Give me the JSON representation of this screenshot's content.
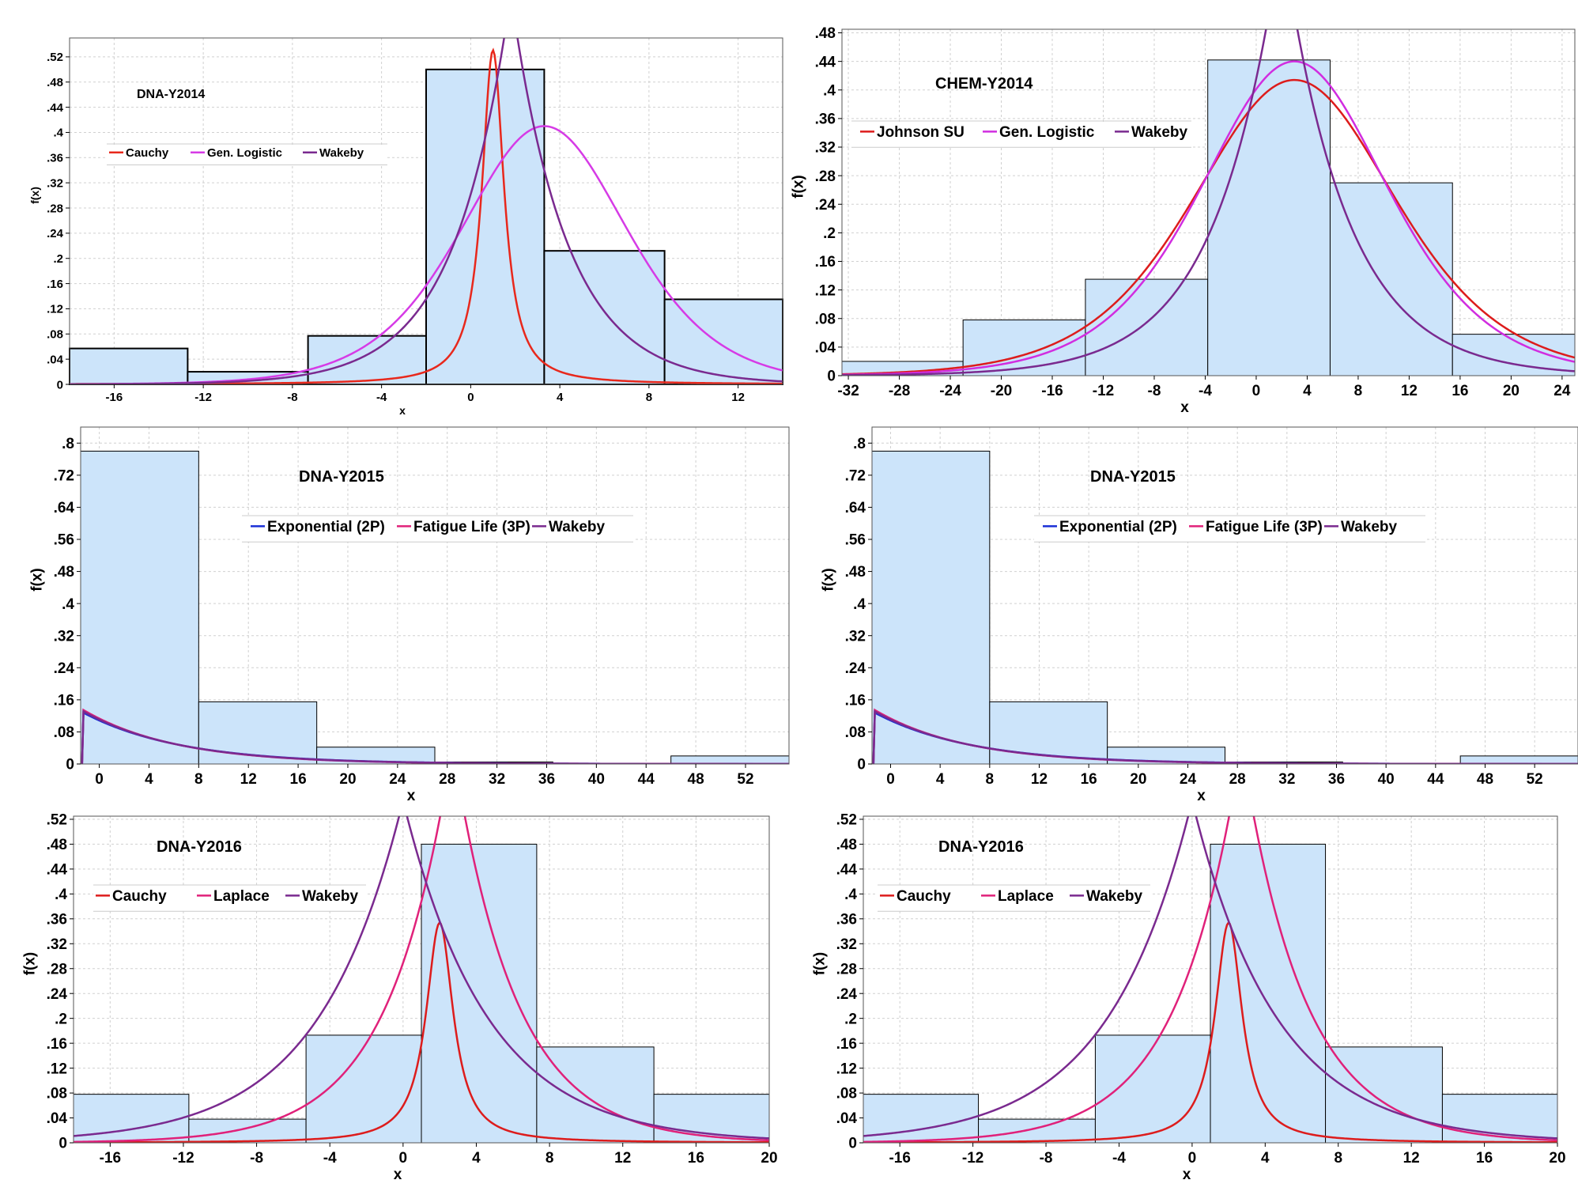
{
  "chart_data": [
    {
      "type": "histogram",
      "title": "DNA-Y2014",
      "xlabel": "x",
      "ylabel": "f(x)",
      "xlim": [
        -18,
        14
      ],
      "ylim": [
        0,
        0.55
      ],
      "xticks": [
        -16,
        -12,
        -8,
        -4,
        0,
        4,
        8,
        12
      ],
      "yticks": [
        0,
        0.04,
        0.08,
        0.12,
        0.16,
        0.2,
        0.24,
        0.28,
        0.32,
        0.36,
        0.4,
        0.44,
        0.48,
        0.52
      ],
      "bins": [
        {
          "from": -18.0,
          "to": -12.7,
          "value": 0.057
        },
        {
          "from": -12.7,
          "to": -7.3,
          "value": 0.02
        },
        {
          "from": -7.3,
          "to": -2.0,
          "value": 0.077
        },
        {
          "from": -2.0,
          "to": 3.3,
          "value": 0.5
        },
        {
          "from": 3.3,
          "to": 8.7,
          "value": 0.212
        },
        {
          "from": 8.7,
          "to": 14.0,
          "value": 0.135
        }
      ],
      "series": [
        {
          "name": "Cauchy",
          "color": "#e8281c",
          "dist": "cauchy",
          "params": [
            1.0,
            0.6
          ]
        },
        {
          "name": "Gen. Logistic",
          "color": "#d63be6",
          "dist": "logistic",
          "params": [
            3.3,
            2.5,
            0.41
          ]
        },
        {
          "name": "Wakeby",
          "color": "#7a2a8f",
          "dist": "laplace",
          "params": [
            1.8,
            2.5,
            0.62
          ]
        }
      ]
    },
    {
      "type": "histogram",
      "title": "CHEM-Y2014",
      "xlabel": "x",
      "ylabel": "f(x)",
      "xlim": [
        -32.5,
        25
      ],
      "ylim": [
        0,
        0.485
      ],
      "xticks": [
        -32,
        -28,
        -24,
        -20,
        -16,
        -12,
        -8,
        -4,
        0,
        4,
        8,
        12,
        16,
        20,
        24
      ],
      "yticks": [
        0,
        0.04,
        0.08,
        0.12,
        0.16,
        0.2,
        0.24,
        0.28,
        0.32,
        0.36,
        0.4,
        0.44,
        0.48
      ],
      "bins": [
        {
          "from": -32.5,
          "to": -23.0,
          "value": 0.02
        },
        {
          "from": -23.0,
          "to": -13.4,
          "value": 0.078
        },
        {
          "from": -13.4,
          "to": -3.8,
          "value": 0.135
        },
        {
          "from": -3.8,
          "to": 5.8,
          "value": 0.442
        },
        {
          "from": 5.8,
          "to": 15.4,
          "value": 0.27
        },
        {
          "from": 15.4,
          "to": 25.0,
          "value": 0.058
        }
      ],
      "series": [
        {
          "name": "Johnson SU",
          "color": "#dd1c1c",
          "dist": "logistic",
          "params": [
            3.0,
            5.3,
            0.414
          ]
        },
        {
          "name": "Gen. Logistic",
          "color": "#d12de0",
          "dist": "logistic",
          "params": [
            3.0,
            4.9,
            0.44
          ]
        },
        {
          "name": "Wakeby",
          "color": "#7a2a8f",
          "dist": "laplace",
          "params": [
            2.0,
            5.0,
            0.62
          ]
        }
      ]
    },
    {
      "type": "histogram",
      "title": "DNA-Y2015",
      "xlabel": "x",
      "ylabel": "f(x)",
      "xlim": [
        -1.5,
        55.5
      ],
      "ylim": [
        0,
        0.84
      ],
      "xticks": [
        0,
        4,
        8,
        12,
        16,
        20,
        24,
        28,
        32,
        36,
        40,
        44,
        48,
        52
      ],
      "yticks": [
        0,
        0.08,
        0.16,
        0.24,
        0.32,
        0.4,
        0.48,
        0.56,
        0.64,
        0.72,
        0.8
      ],
      "bins": [
        {
          "from": -1.5,
          "to": 8.0,
          "value": 0.78
        },
        {
          "from": 8.0,
          "to": 17.5,
          "value": 0.155
        },
        {
          "from": 17.5,
          "to": 27.0,
          "value": 0.042
        },
        {
          "from": 27.0,
          "to": 36.5,
          "value": 0.005
        },
        {
          "from": 36.5,
          "to": 46.0,
          "value": 0.0
        },
        {
          "from": 46.0,
          "to": 55.5,
          "value": 0.02
        }
      ],
      "series": [
        {
          "name": "Exponential (2P)",
          "color": "#1a2fd6",
          "dist": "exp",
          "params": [
            -1.3,
            7.8
          ]
        },
        {
          "name": "Fatigue Life (3P)",
          "color": "#e0217a",
          "dist": "exp",
          "params": [
            -1.3,
            7.4
          ]
        },
        {
          "name": "Wakeby",
          "color": "#7a2a8f",
          "dist": "exp",
          "params": [
            -1.3,
            7.6
          ]
        }
      ]
    },
    {
      "type": "histogram",
      "title": "DNA-Y2015",
      "xlabel": "x",
      "ylabel": "f(x)",
      "xlim": [
        -1.5,
        55.5
      ],
      "ylim": [
        0,
        0.84
      ],
      "xticks": [
        0,
        4,
        8,
        12,
        16,
        20,
        24,
        28,
        32,
        36,
        40,
        44,
        48,
        52
      ],
      "yticks": [
        0,
        0.08,
        0.16,
        0.24,
        0.32,
        0.4,
        0.48,
        0.56,
        0.64,
        0.72,
        0.8
      ],
      "bins": [
        {
          "from": -1.5,
          "to": 8.0,
          "value": 0.78
        },
        {
          "from": 8.0,
          "to": 17.5,
          "value": 0.155
        },
        {
          "from": 17.5,
          "to": 27.0,
          "value": 0.042
        },
        {
          "from": 27.0,
          "to": 36.5,
          "value": 0.005
        },
        {
          "from": 36.5,
          "to": 46.0,
          "value": 0.0
        },
        {
          "from": 46.0,
          "to": 55.5,
          "value": 0.02
        }
      ],
      "series": [
        {
          "name": "Exponential (2P)",
          "color": "#1a2fd6",
          "dist": "exp",
          "params": [
            -1.3,
            7.8
          ]
        },
        {
          "name": "Fatigue Life (3P)",
          "color": "#e0217a",
          "dist": "exp",
          "params": [
            -1.3,
            7.4
          ]
        },
        {
          "name": "Wakeby",
          "color": "#7a2a8f",
          "dist": "exp",
          "params": [
            -1.3,
            7.6
          ]
        }
      ]
    },
    {
      "type": "histogram",
      "title": "DNA-Y2016",
      "xlabel": "x",
      "ylabel": "f(x)",
      "xlim": [
        -18,
        20
      ],
      "ylim": [
        0,
        0.525
      ],
      "xticks": [
        -16,
        -12,
        -8,
        -4,
        0,
        4,
        8,
        12,
        16,
        20
      ],
      "yticks": [
        0,
        0.04,
        0.08,
        0.12,
        0.16,
        0.2,
        0.24,
        0.28,
        0.32,
        0.36,
        0.4,
        0.44,
        0.48,
        0.52
      ],
      "bins": [
        {
          "from": -18.0,
          "to": -11.7,
          "value": 0.078
        },
        {
          "from": -11.7,
          "to": -5.3,
          "value": 0.038
        },
        {
          "from": -5.3,
          "to": 1.0,
          "value": 0.173
        },
        {
          "from": 1.0,
          "to": 7.3,
          "value": 0.48
        },
        {
          "from": 7.3,
          "to": 13.7,
          "value": 0.154
        },
        {
          "from": 13.7,
          "to": 20.0,
          "value": 0.078
        }
      ],
      "series": [
        {
          "name": "Cauchy",
          "color": "#dd1c1c",
          "dist": "cauchy",
          "params": [
            2.0,
            0.9
          ]
        },
        {
          "name": "Laplace",
          "color": "#e0217a",
          "dist": "laplace",
          "params": [
            2.7,
            3.4,
            0.64
          ]
        },
        {
          "name": "Wakeby",
          "color": "#7a2a8f",
          "dist": "laplace",
          "params": [
            0.0,
            4.6,
            0.55
          ]
        }
      ]
    },
    {
      "type": "histogram",
      "title": "DNA-Y2016",
      "xlabel": "x",
      "ylabel": "f(x)",
      "xlim": [
        -18,
        20
      ],
      "ylim": [
        0,
        0.525
      ],
      "xticks": [
        -16,
        -12,
        -8,
        -4,
        0,
        4,
        8,
        12,
        16,
        20
      ],
      "yticks": [
        0,
        0.04,
        0.08,
        0.12,
        0.16,
        0.2,
        0.24,
        0.28,
        0.32,
        0.36,
        0.4,
        0.44,
        0.48,
        0.52
      ],
      "bins": [
        {
          "from": -18.0,
          "to": -11.7,
          "value": 0.078
        },
        {
          "from": -11.7,
          "to": -5.3,
          "value": 0.038
        },
        {
          "from": -5.3,
          "to": 1.0,
          "value": 0.173
        },
        {
          "from": 1.0,
          "to": 7.3,
          "value": 0.48
        },
        {
          "from": 7.3,
          "to": 13.7,
          "value": 0.154
        },
        {
          "from": 13.7,
          "to": 20.0,
          "value": 0.078
        }
      ],
      "series": [
        {
          "name": "Cauchy",
          "color": "#dd1c1c",
          "dist": "cauchy",
          "params": [
            2.0,
            0.9
          ]
        },
        {
          "name": "Laplace",
          "color": "#e0217a",
          "dist": "laplace",
          "params": [
            2.7,
            3.4,
            0.64
          ]
        },
        {
          "name": "Wakeby",
          "color": "#7a2a8f",
          "dist": "laplace",
          "params": [
            0.0,
            4.6,
            0.55
          ]
        }
      ]
    }
  ],
  "style": {
    "bar_fill": "#cce4fa",
    "grid_color": "#d0d0d0",
    "background": "#ffffff"
  }
}
